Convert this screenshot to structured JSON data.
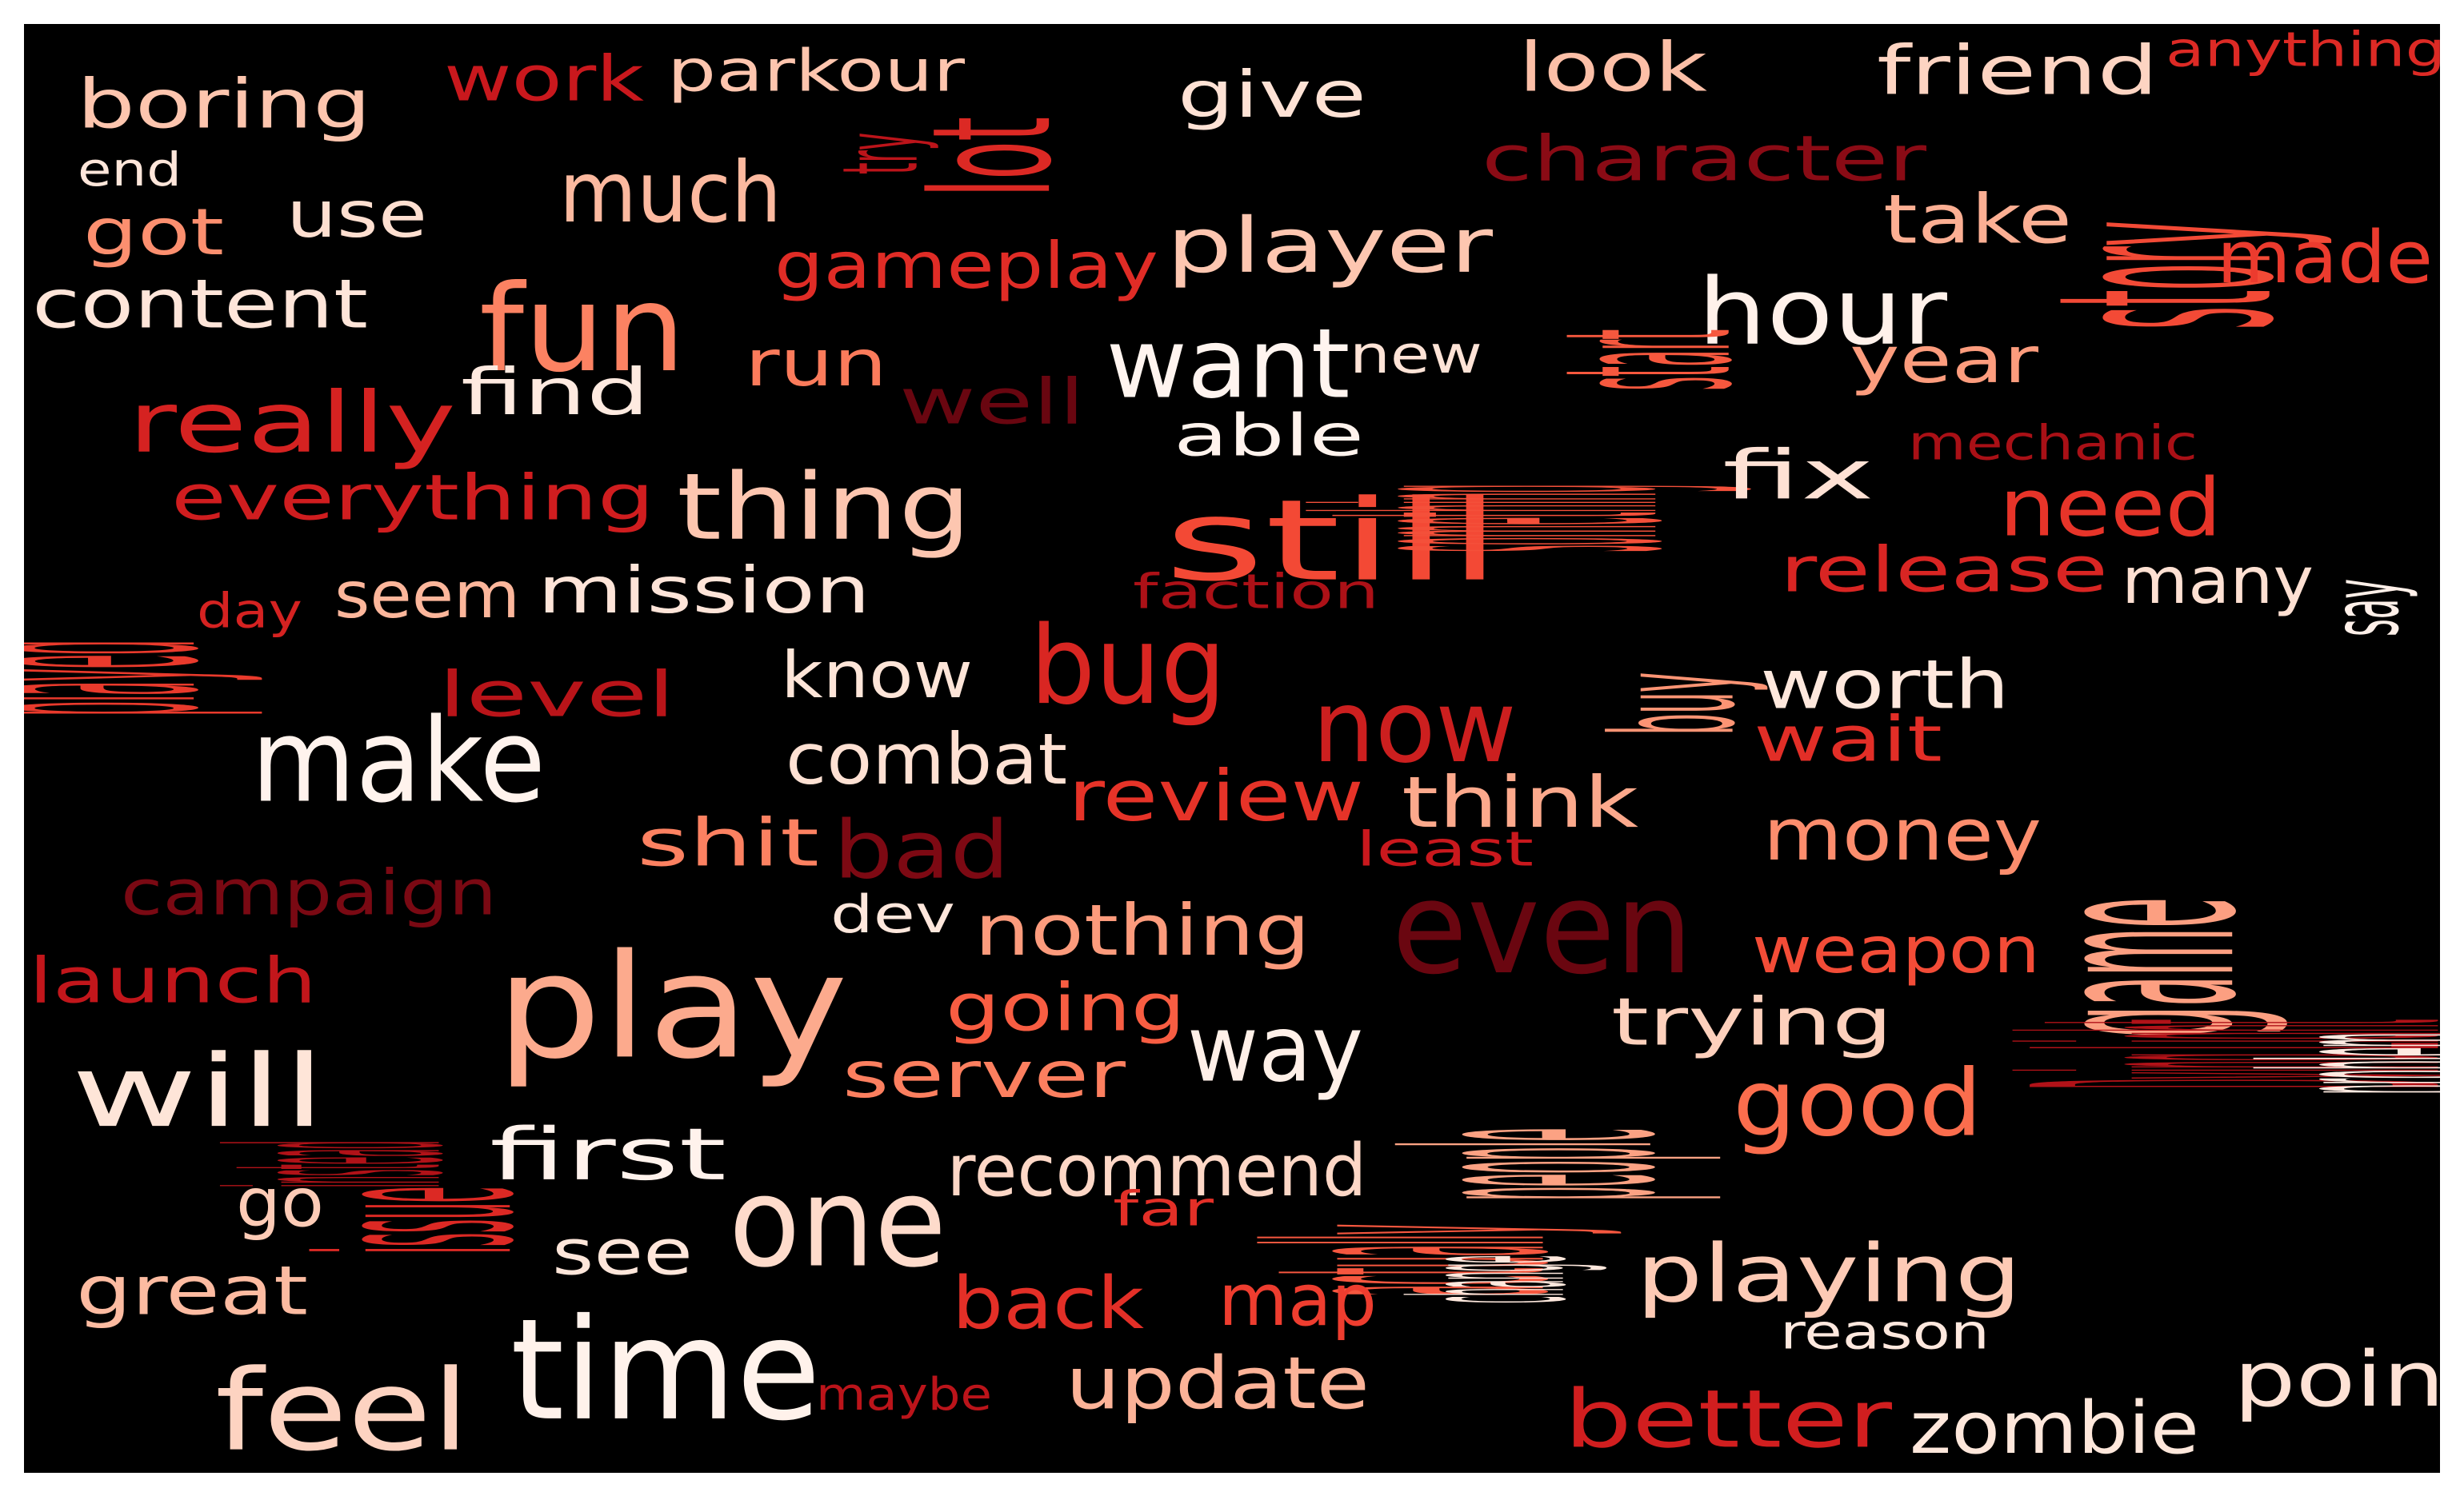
{
  "words": [
    {
      "text": "game",
      "color": "#fc9f81"
    },
    {
      "text": "play",
      "color": "#fcaa8d"
    },
    {
      "text": "time",
      "color": "#fff2eb"
    },
    {
      "text": "make",
      "color": "#fff3ed"
    },
    {
      "text": "even",
      "color": "#6a0610"
    },
    {
      "text": "one",
      "color": "#fedbcb"
    },
    {
      "text": "fun",
      "color": "#fc8262"
    },
    {
      "text": "still",
      "color": "#f34935"
    },
    {
      "text": "feel",
      "color": "#fdd3c1"
    },
    {
      "text": "bug",
      "color": "#d92622"
    },
    {
      "text": "now",
      "color": "#cc1f1f"
    },
    {
      "text": "will",
      "color": "#fee5d8"
    },
    {
      "text": "good",
      "color": "#fb6d4d"
    },
    {
      "text": "want",
      "color": "#fff4ef"
    },
    {
      "text": "hour",
      "color": "#fff1ea"
    },
    {
      "text": "story",
      "color": "#f34a36"
    },
    {
      "text": "thing",
      "color": "#fdc6b0"
    },
    {
      "text": "way",
      "color": "#fff0e8"
    },
    {
      "text": "playing",
      "color": "#fdcab5"
    },
    {
      "text": "played",
      "color": "#e93a2c"
    },
    {
      "text": "really",
      "color": "#d52221"
    },
    {
      "text": "better",
      "color": "#d11e1f"
    },
    {
      "text": "people",
      "color": "#fca283"
    },
    {
      "text": "actually",
      "color": "#f6573f"
    },
    {
      "text": "lot",
      "color": "#dc2924"
    },
    {
      "text": "much",
      "color": "#fcb99f"
    },
    {
      "text": "player",
      "color": "#fdc6b0"
    },
    {
      "text": "something",
      "color": "#f4503a"
    },
    {
      "text": "need",
      "color": "#e73429"
    },
    {
      "text": "bad",
      "color": "#7d0913"
    },
    {
      "text": "Dying Light",
      "color": "#b11218"
    },
    {
      "text": "update",
      "color": "#fcb398"
    },
    {
      "text": "point",
      "color": "#fee2d5"
    },
    {
      "text": "money",
      "color": "#fc8d6d"
    },
    {
      "text": "zombie",
      "color": "#fee7db"
    },
    {
      "text": "recommend",
      "color": "#fdd7c6"
    },
    {
      "text": "back",
      "color": "#e32f27"
    },
    {
      "text": "map",
      "color": "#ee3d2f"
    },
    {
      "text": "issue",
      "color": "#dc2924"
    },
    {
      "text": "nothing",
      "color": "#fc9b7c"
    },
    {
      "text": "review",
      "color": "#e63328"
    },
    {
      "text": "think",
      "color": "#fca98c"
    },
    {
      "text": "made",
      "color": "#ec3b2e"
    },
    {
      "text": "combat",
      "color": "#fee1d3"
    },
    {
      "text": "first",
      "color": "#fff2ec"
    },
    {
      "text": "buy",
      "color": "#fc9474"
    },
    {
      "text": "start",
      "color": "#f6583e"
    },
    {
      "text": "content",
      "color": "#fee5d9"
    },
    {
      "text": "boring",
      "color": "#fdc5ae"
    },
    {
      "text": "problem",
      "color": "#feeae1"
    },
    {
      "text": "worth",
      "color": "#fee8dd"
    },
    {
      "text": "great",
      "color": "#fcbba1"
    },
    {
      "text": "look",
      "color": "#fcbfa7"
    },
    {
      "text": "friend",
      "color": "#fdd4c2"
    },
    {
      "text": "take",
      "color": "#fcaf93"
    },
    {
      "text": "year",
      "color": "#fc9c7d"
    },
    {
      "text": "fix",
      "color": "#fee1d4"
    },
    {
      "text": "know",
      "color": "#fee5d8"
    },
    {
      "text": "gameplay",
      "color": "#e02c26"
    },
    {
      "text": "go",
      "color": "#fdcbb6"
    },
    {
      "text": "give",
      "color": "#fee2d5"
    },
    {
      "text": "weapon",
      "color": "#f34c37"
    },
    {
      "text": "trying",
      "color": "#fdd0bc"
    },
    {
      "text": "going",
      "color": "#f85d42"
    },
    {
      "text": "server",
      "color": "#fc7f5f"
    },
    {
      "text": "shit",
      "color": "#fc8161"
    },
    {
      "text": "many",
      "color": "#fee0d2"
    },
    {
      "text": "say",
      "color": "#fff0e9"
    },
    {
      "text": "seem",
      "color": "#fcb69b"
    },
    {
      "text": "mission",
      "color": "#fee4d8"
    },
    {
      "text": "run",
      "color": "#fb7b5b"
    },
    {
      "text": "got",
      "color": "#fc8f6f"
    },
    {
      "text": "use",
      "color": "#fedfd0"
    },
    {
      "text": "find",
      "color": "#feeae0"
    },
    {
      "text": "see",
      "color": "#fee6da"
    },
    {
      "text": "release",
      "color": "#d92523"
    },
    {
      "text": "wait",
      "color": "#e22e27"
    },
    {
      "text": "everything",
      "color": "#d01d1f"
    },
    {
      "text": "character",
      "color": "#8a0b15"
    },
    {
      "text": "level",
      "color": "#b91419"
    },
    {
      "text": "campaign",
      "color": "#7a0913"
    },
    {
      "text": "launch",
      "color": "#c2161b"
    },
    {
      "text": "work",
      "color": "#c9181d"
    },
    {
      "text": "parkour",
      "color": "#fdc5ae"
    },
    {
      "text": "well",
      "color": "#690610"
    },
    {
      "text": "instead",
      "color": "#b11218"
    },
    {
      "text": "able",
      "color": "#fff3ed"
    },
    {
      "text": "new",
      "color": "#fee3d6"
    },
    {
      "text": "dev",
      "color": "#fee7dc"
    },
    {
      "text": "reason",
      "color": "#fee8de"
    },
    {
      "text": "change",
      "color": "#fee8dd"
    },
    {
      "text": "faction",
      "color": "#ac1117"
    },
    {
      "text": "least",
      "color": "#c9181d"
    },
    {
      "text": "far",
      "color": "#e32f27"
    },
    {
      "text": "maybe",
      "color": "#bb141a"
    },
    {
      "text": "mechanic",
      "color": "#a91016"
    },
    {
      "text": "anything",
      "color": "#dd2a25"
    },
    {
      "text": "try",
      "color": "#bc141a"
    },
    {
      "text": "day",
      "color": "#d52221"
    },
    {
      "text": "end",
      "color": "#fee6da"
    }
  ]
}
